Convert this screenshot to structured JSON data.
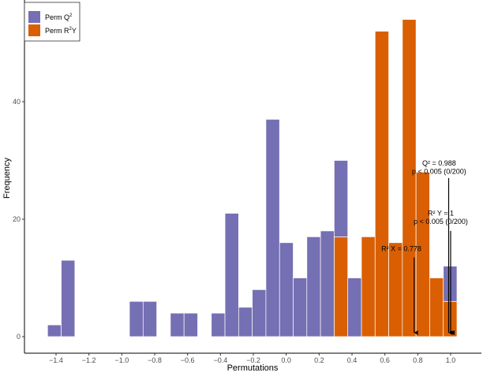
{
  "chart_data": {
    "type": "bar",
    "stacked": true,
    "title": "",
    "xlabel": "Permutations",
    "ylabel": "Frequency",
    "xlim": [
      -1.58,
      1.1
    ],
    "ylim": [
      0,
      58
    ],
    "grid": false,
    "legend_placement": "top-left",
    "x_ticks": [
      -1.4,
      -1.2,
      -1.0,
      -0.8,
      -0.6,
      -0.4,
      -0.2,
      0.0,
      0.2,
      0.4,
      0.6,
      0.8,
      1.0
    ],
    "x_tick_labels": [
      "-1.4",
      "-1.2",
      "-1.0",
      "-0.8",
      "-0.6",
      "-0.4",
      "-0.2",
      "0.0",
      "0.2",
      "0.4",
      "0.6",
      "0.8",
      "1.0"
    ],
    "y_ticks": [
      0,
      20,
      40
    ],
    "y_tick_labels": [
      "0",
      "20",
      "40"
    ],
    "bin_centers": [
      -1.41,
      -1.327,
      -1.244,
      -1.161,
      -1.078,
      -0.995,
      -0.912,
      -0.829,
      -0.746,
      -0.663,
      -0.58,
      -0.497,
      -0.414,
      -0.331,
      -0.248,
      -0.165,
      -0.082,
      0.001,
      0.084,
      0.167,
      0.25,
      0.333,
      0.416,
      0.499,
      0.582,
      0.665,
      0.748,
      0.831,
      0.914,
      0.997
    ],
    "bin_width": 0.083,
    "series": [
      {
        "name": "Perm R²Y",
        "label_base": "Perm R",
        "label_sup": "2",
        "label_tail": "Y",
        "color": "#d95f02",
        "values": [
          0,
          0,
          0,
          0,
          0,
          0,
          0,
          0,
          0,
          0,
          0,
          0,
          0,
          0,
          0,
          0,
          0,
          0,
          0,
          0,
          0,
          17,
          0,
          17,
          52,
          16,
          54,
          28,
          10,
          6
        ]
      },
      {
        "name": "Perm Q²",
        "label_base": "Perm Q",
        "label_sup": "2",
        "label_tail": "",
        "color": "#7570b3",
        "values": [
          2,
          13,
          0,
          0,
          0,
          0,
          6,
          6,
          0,
          4,
          4,
          0,
          4,
          21,
          5,
          8,
          37,
          16,
          10,
          17,
          18,
          13,
          10,
          0,
          0,
          0,
          0,
          0,
          0,
          6
        ]
      }
    ],
    "annotations": [
      {
        "id": "q2",
        "lines": [
          "Q² = 0.988",
          "p < 0.005 (0/200)"
        ],
        "arrow_x": 0.988,
        "arrow_from": 27,
        "text_x": 0.93,
        "text_y": [
          29.5,
          28.1
        ]
      },
      {
        "id": "r2y",
        "lines": [
          "R² Y = 1",
          "p < 0.005 (0/200)"
        ],
        "arrow_x": 1.0,
        "arrow_from": 18,
        "text_x": 0.94,
        "text_y": [
          21.0,
          19.6
        ]
      },
      {
        "id": "r2x",
        "lines": [
          "R² X = 0.778"
        ],
        "arrow_x": 0.778,
        "arrow_from": 13.5,
        "text_x": 0.7,
        "text_y": [
          15.0
        ]
      }
    ]
  }
}
